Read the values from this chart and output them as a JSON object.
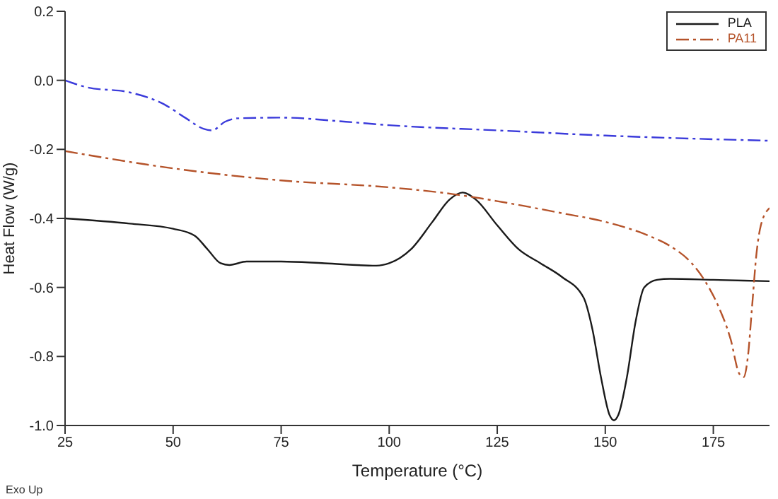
{
  "chart_data": {
    "type": "line",
    "xlabel": "Temperature (°C)",
    "ylabel": "Heat Flow (W/g)",
    "xlim": [
      25,
      188
    ],
    "xticks": [
      25,
      50,
      75,
      100,
      125,
      150,
      175
    ],
    "ylim": [
      -1.0,
      0.2
    ],
    "yticks": [
      {
        "value": -1.0,
        "label": "-1.0"
      },
      {
        "value": -0.8,
        "label": "-0.8"
      },
      {
        "value": -0.6,
        "label": "-0.6"
      },
      {
        "value": -0.4,
        "label": "-0.4"
      },
      {
        "value": -0.2,
        "label": "-0.2"
      },
      {
        "value": 0,
        "label": "0.0"
      },
      {
        "value": 0.2,
        "label": "0.2"
      }
    ],
    "legend": "top right",
    "marker": "none",
    "annotations": [
      "Exo Up"
    ],
    "series": [
      {
        "name": "PLA",
        "color": "#1a1a1a",
        "line_style": "solid",
        "x": [
          25,
          40,
          50,
          55,
          58,
          61,
          63,
          67,
          75,
          85,
          97,
          100,
          105,
          110,
          114,
          117,
          120,
          125,
          130,
          135,
          140,
          145,
          147,
          149,
          151,
          152,
          153,
          155,
          157,
          159,
          162,
          165,
          175,
          188
        ],
        "values": [
          -0.4,
          -0.415,
          -0.43,
          -0.45,
          -0.49,
          -0.53,
          -0.535,
          -0.525,
          -0.525,
          -0.53,
          -0.537,
          -0.53,
          -0.49,
          -0.41,
          -0.345,
          -0.325,
          -0.345,
          -0.42,
          -0.49,
          -0.53,
          -0.57,
          -0.63,
          -0.72,
          -0.86,
          -0.97,
          -0.985,
          -0.97,
          -0.86,
          -0.7,
          -0.6,
          -0.578,
          -0.575,
          -0.578,
          -0.582
        ]
      },
      {
        "name": "PA11",
        "color": "#b5532a",
        "line_style": "dashdot",
        "x": [
          25,
          50,
          75,
          100,
          115,
          125,
          140,
          150,
          160,
          165,
          170,
          173,
          176,
          179,
          181,
          182,
          183,
          184,
          185,
          186,
          188
        ],
        "values": [
          -0.205,
          -0.255,
          -0.29,
          -0.31,
          -0.33,
          -0.35,
          -0.385,
          -0.41,
          -0.45,
          -0.48,
          -0.53,
          -0.58,
          -0.65,
          -0.75,
          -0.85,
          -0.86,
          -0.8,
          -0.65,
          -0.5,
          -0.42,
          -0.37
        ]
      },
      {
        "color": "#3b3bdb",
        "line_style": "dashdot",
        "x": [
          25,
          30,
          40,
          48,
          53,
          57,
          59,
          62,
          65,
          75,
          90,
          100,
          125,
          150,
          188
        ],
        "values": [
          0.0,
          -0.02,
          -0.035,
          -0.07,
          -0.11,
          -0.14,
          -0.145,
          -0.12,
          -0.11,
          -0.108,
          -0.12,
          -0.13,
          -0.145,
          -0.16,
          -0.175
        ]
      }
    ]
  }
}
